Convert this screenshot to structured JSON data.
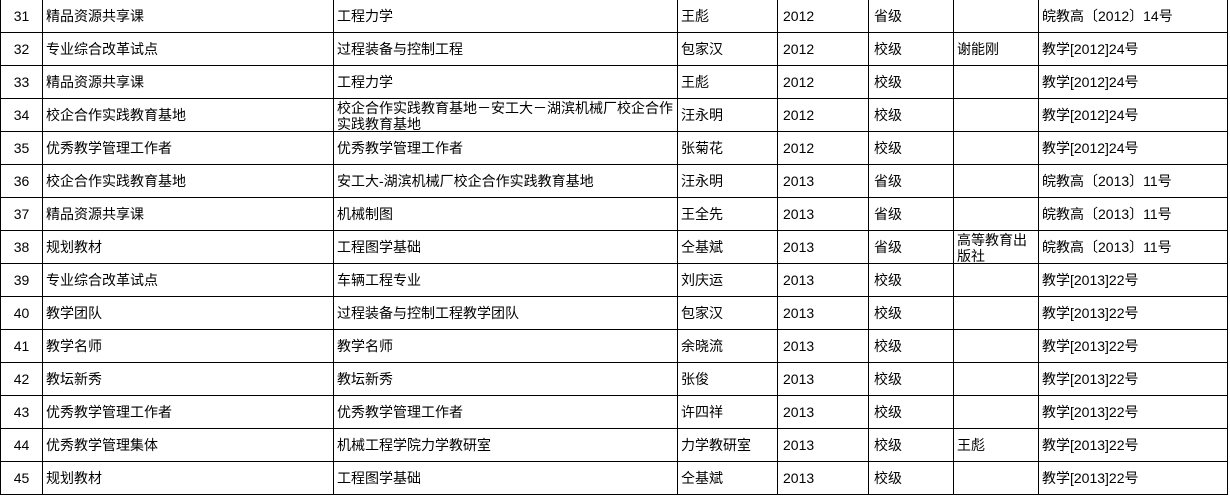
{
  "colors": {
    "background": "#ffffff",
    "text": "#000000",
    "gridline": "#000000"
  },
  "table": {
    "column_keys": [
      "no",
      "category",
      "name",
      "person",
      "year",
      "level",
      "note",
      "doc"
    ],
    "rows": [
      {
        "no": "31",
        "category": "精品资源共享课",
        "name": "工程力学",
        "person": "王彪",
        "year": "2012",
        "level": "省级",
        "note": "",
        "doc": "皖教高〔2012〕14号"
      },
      {
        "no": "32",
        "category": "专业综合改革试点",
        "name": "过程装备与控制工程",
        "person": "包家汉",
        "year": "2012",
        "level": "校级",
        "note": "谢能刚",
        "doc": "教学[2012]24号"
      },
      {
        "no": "33",
        "category": "精品资源共享课",
        "name": "工程力学",
        "person": "王彪",
        "year": "2012",
        "level": "校级",
        "note": "",
        "doc": "教学[2012]24号"
      },
      {
        "no": "34",
        "category": "校企合作实践教育基地",
        "name": "校企合作实践教育基地－安工大－湖滨机械厂校企合作实践教育基地",
        "person": "汪永明",
        "year": "2012",
        "level": "校级",
        "note": "",
        "doc": "教学[2012]24号"
      },
      {
        "no": "35",
        "category": "优秀教学管理工作者",
        "name": "优秀教学管理工作者",
        "person": "张菊花",
        "year": "2012",
        "level": "校级",
        "note": "",
        "doc": "教学[2012]24号"
      },
      {
        "no": "36",
        "category": "校企合作实践教育基地",
        "name": "安工大-湖滨机械厂校企合作实践教育基地",
        "person": "汪永明",
        "year": "2013",
        "level": "省级",
        "note": "",
        "doc": "皖教高〔2013〕11号"
      },
      {
        "no": "37",
        "category": "精品资源共享课",
        "name": "机械制图",
        "person": "王全先",
        "year": "2013",
        "level": "省级",
        "note": "",
        "doc": "皖教高〔2013〕11号"
      },
      {
        "no": "38",
        "category": "规划教材",
        "name": "工程图学基础",
        "person": "仝基斌",
        "year": "2013",
        "level": "省级",
        "note": "高等教育出版社",
        "doc": "皖教高〔2013〕11号"
      },
      {
        "no": "39",
        "category": "专业综合改革试点",
        "name": "车辆工程专业",
        "person": "刘庆运",
        "year": "2013",
        "level": "校级",
        "note": "",
        "doc": "教学[2013]22号"
      },
      {
        "no": "40",
        "category": "教学团队",
        "name": "过程装备与控制工程教学团队",
        "person": "包家汉",
        "year": "2013",
        "level": "校级",
        "note": "",
        "doc": "教学[2013]22号"
      },
      {
        "no": "41",
        "category": "教学名师",
        "name": "教学名师",
        "person": "余晓流",
        "year": "2013",
        "level": "校级",
        "note": "",
        "doc": "教学[2013]22号"
      },
      {
        "no": "42",
        "category": "教坛新秀",
        "name": "教坛新秀",
        "person": "张俊",
        "year": "2013",
        "level": "校级",
        "note": "",
        "doc": "教学[2013]22号"
      },
      {
        "no": "43",
        "category": "优秀教学管理工作者",
        "name": "优秀教学管理工作者",
        "person": "许四祥",
        "year": "2013",
        "level": "校级",
        "note": "",
        "doc": "教学[2013]22号"
      },
      {
        "no": "44",
        "category": "优秀教学管理集体",
        "name": "机械工程学院力学教研室",
        "person": "力学教研室",
        "year": "2013",
        "level": "校级",
        "note": "王彪",
        "doc": "教学[2013]22号"
      },
      {
        "no": "45",
        "category": "规划教材",
        "name": "工程图学基础",
        "person": "仝基斌",
        "year": "2013",
        "level": "校级",
        "note": "",
        "doc": "教学[2013]22号"
      }
    ]
  }
}
